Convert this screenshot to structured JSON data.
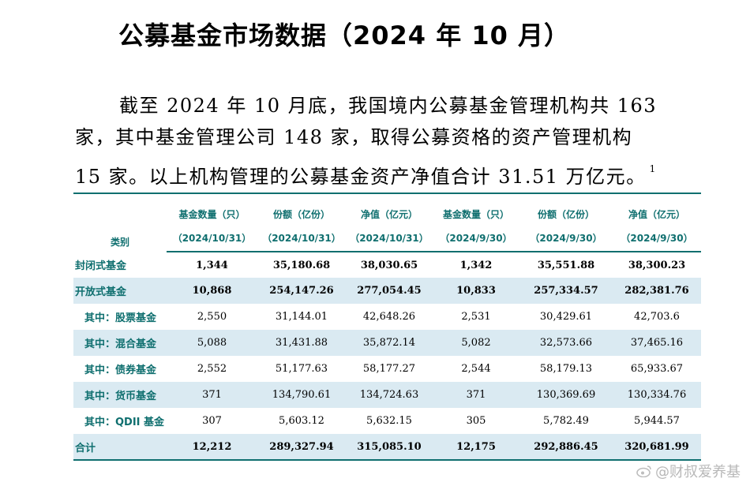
{
  "title": "公募基金市场数据（2024 年 10 月）",
  "paragraph": {
    "line1": "截至 2024 年 10 月底，我国境内公募基金管理机构共 163",
    "line2": "家，其中基金管理公司 148 家，取得公募资格的资产管理机构",
    "line3": "15 家。以上机构管理的公募基金资产净值合计 31.51 万亿元。",
    "footnote": "1"
  },
  "table": {
    "category_header": "类别",
    "headers": [
      {
        "label": "基金数量（只）",
        "date": "（2024/10/31）"
      },
      {
        "label": "份额（亿份）",
        "date": "（2024/10/31）"
      },
      {
        "label": "净值（亿元）",
        "date": "（2024/10/31）"
      },
      {
        "label": "基金数量（只）",
        "date": "（2024/9/30）"
      },
      {
        "label": "份额（亿份）",
        "date": "（2024/9/30）"
      },
      {
        "label": "净值（亿元）",
        "date": "（2024/9/30）"
      }
    ],
    "rows": [
      {
        "label": "封闭式基金",
        "values": [
          "1,344",
          "35,180.68",
          "38,030.65",
          "1,342",
          "35,551.88",
          "38,300.23"
        ]
      },
      {
        "label": "开放式基金",
        "values": [
          "10,868",
          "254,147.26",
          "277,054.45",
          "10,833",
          "257,334.57",
          "282,381.76"
        ]
      },
      {
        "label": "其中：股票基金",
        "values": [
          "2,550",
          "31,144.01",
          "42,648.26",
          "2,531",
          "30,429.61",
          "42,703.6"
        ]
      },
      {
        "label": "其中：混合基金",
        "values": [
          "5,088",
          "31,431.88",
          "35,872.14",
          "5,082",
          "32,573.66",
          "37,465.16"
        ]
      },
      {
        "label": "其中：债券基金",
        "values": [
          "2,552",
          "51,177.63",
          "58,177.27",
          "2,544",
          "58,179.13",
          "65,933.67"
        ]
      },
      {
        "label": "其中：货币基金",
        "values": [
          "371",
          "134,790.61",
          "134,724.63",
          "371",
          "130,369.69",
          "130,334.76"
        ]
      },
      {
        "label": "其中：QDII 基金",
        "values": [
          "307",
          "5,603.12",
          "5,632.15",
          "305",
          "5,782.49",
          "5,944.57"
        ]
      },
      {
        "label": "合计",
        "values": [
          "12,212",
          "289,327.94",
          "315,085.10",
          "12,175",
          "292,886.45",
          "320,681.99"
        ]
      }
    ]
  },
  "watermark": {
    "text": "@财叔爱养基",
    "icon": "weibo-icon"
  },
  "colors": {
    "accent": "#0f6f6f",
    "row_shade": "#daeaf2"
  }
}
